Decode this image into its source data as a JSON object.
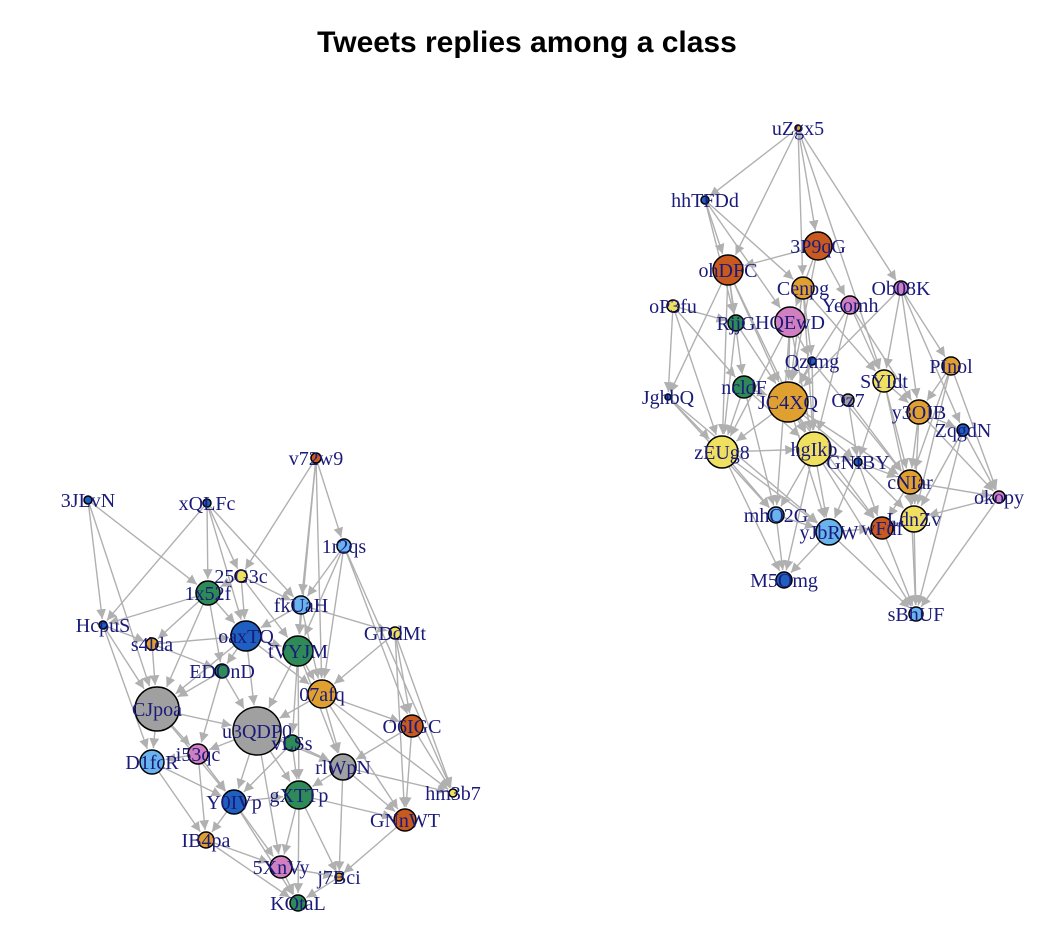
{
  "title": "Tweets replies among a class",
  "colors": {
    "edge": "#b0b0b0",
    "label": "#1a1a7a",
    "node_stroke": "#000000",
    "palette": {
      "orange": "#e0a030",
      "yellow": "#f0e060",
      "green": "#2e8b57",
      "lightblue": "#6ab4ee",
      "blue": "#1f5fbf",
      "gray": "#a0a0a0",
      "pink": "#d080c0",
      "rust": "#c85a20"
    }
  },
  "nodes": [
    {
      "id": "uZgx5",
      "color": "orange",
      "size": 3
    },
    {
      "id": "hhTFDd",
      "color": "blue",
      "size": 4
    },
    {
      "id": "3P9qG",
      "color": "rust",
      "size": 14
    },
    {
      "id": "ohDFC",
      "color": "rust",
      "size": 15
    },
    {
      "id": "Cenpg",
      "color": "orange",
      "size": 11
    },
    {
      "id": "Ob08K",
      "color": "pink",
      "size": 7
    },
    {
      "id": "Yeomh",
      "color": "pink",
      "size": 9
    },
    {
      "id": "oP3fu",
      "color": "yellow",
      "size": 6
    },
    {
      "id": "RjjG",
      "color": "green",
      "size": 8
    },
    {
      "id": "HQEwD",
      "color": "pink",
      "size": 15
    },
    {
      "id": "Qztmg",
      "color": "blue",
      "size": 4
    },
    {
      "id": "PInol",
      "color": "orange",
      "size": 9
    },
    {
      "id": "JghbQ",
      "color": "blue",
      "size": 3
    },
    {
      "id": "ncldF",
      "color": "green",
      "size": 11
    },
    {
      "id": "JC4XQ",
      "color": "orange",
      "size": 20
    },
    {
      "id": "SYIdt",
      "color": "yellow",
      "size": 11
    },
    {
      "id": "Oz7",
      "color": "gray",
      "size": 6
    },
    {
      "id": "y3OIB",
      "color": "orange",
      "size": 12
    },
    {
      "id": "ZqgdN",
      "color": "blue",
      "size": 6
    },
    {
      "id": "zEUg8",
      "color": "yellow",
      "size": 16
    },
    {
      "id": "hgIkb",
      "color": "yellow",
      "size": 17
    },
    {
      "id": "GNIBY",
      "color": "blue",
      "size": 4
    },
    {
      "id": "cNIar",
      "color": "orange",
      "size": 12
    },
    {
      "id": "okopy",
      "color": "pink",
      "size": 6
    },
    {
      "id": "mhO2G",
      "color": "lightblue",
      "size": 8
    },
    {
      "id": "yJbRW",
      "color": "lightblue",
      "size": 13
    },
    {
      "id": "wFdf",
      "color": "rust",
      "size": 11
    },
    {
      "id": "LdnZv",
      "color": "yellow",
      "size": 13
    },
    {
      "id": "M5Omg",
      "color": "blue",
      "size": 8
    },
    {
      "id": "sBhUF",
      "color": "lightblue",
      "size": 7
    },
    {
      "id": "v72w9",
      "color": "rust",
      "size": 5
    },
    {
      "id": "3JLvN",
      "color": "blue",
      "size": 4
    },
    {
      "id": "xQLFc",
      "color": "blue",
      "size": 4
    },
    {
      "id": "1r2qs",
      "color": "lightblue",
      "size": 7
    },
    {
      "id": "25G3c",
      "color": "yellow",
      "size": 6
    },
    {
      "id": "1x52f",
      "color": "green",
      "size": 12
    },
    {
      "id": "fkUaH",
      "color": "lightblue",
      "size": 9
    },
    {
      "id": "HcpuS",
      "color": "blue",
      "size": 4
    },
    {
      "id": "GDdMt",
      "color": "yellow",
      "size": 6
    },
    {
      "id": "s4lda",
      "color": "orange",
      "size": 6
    },
    {
      "id": "oaxTQ",
      "color": "blue",
      "size": 15
    },
    {
      "id": "tVYJM",
      "color": "green",
      "size": 15
    },
    {
      "id": "EDOnD",
      "color": "green",
      "size": 7
    },
    {
      "id": "07afq",
      "color": "orange",
      "size": 14
    },
    {
      "id": "CJpoa",
      "color": "gray",
      "size": 22
    },
    {
      "id": "u3QDP0",
      "color": "gray",
      "size": 24
    },
    {
      "id": "O6IGC",
      "color": "rust",
      "size": 11
    },
    {
      "id": "i53qc",
      "color": "pink",
      "size": 10
    },
    {
      "id": "vLSs",
      "color": "green",
      "size": 8
    },
    {
      "id": "D1fcR",
      "color": "lightblue",
      "size": 12
    },
    {
      "id": "rlWpN",
      "color": "gray",
      "size": 13
    },
    {
      "id": "hm3b7",
      "color": "yellow",
      "size": 4
    },
    {
      "id": "Y0IVp",
      "color": "blue",
      "size": 12
    },
    {
      "id": "gXTTp",
      "color": "green",
      "size": 14
    },
    {
      "id": "GNnWT",
      "color": "rust",
      "size": 11
    },
    {
      "id": "IB4pa",
      "color": "orange",
      "size": 8
    },
    {
      "id": "5XnVy",
      "color": "pink",
      "size": 11
    },
    {
      "id": "j7Bci",
      "color": "orange",
      "size": 4
    },
    {
      "id": "KOtaL",
      "color": "green",
      "size": 8
    }
  ],
  "labels": {
    "uZgx5": "uZgx5",
    "hhTFDd": "hhTFDd",
    "3P9qG": "3P9qG",
    "ohDFC": "ohDFC",
    "Cenpg": "Cenpg",
    "Ob08K": "Ob08K",
    "Yeomh": "Yeomh",
    "oP3fu": "oP3fu",
    "RjjG": "RjjG",
    "HQEwD": "HQEwD",
    "Qztmg": "Qztmg",
    "PInol": "PInol",
    "JghbQ": "JghbQ",
    "ncldF": "ncldF",
    "JC4XQ": "JC4XQ",
    "SYIdt": "SYIdt",
    "Oz7": "Oz7",
    "y3OIB": "y3OIB",
    "ZqgdN": "ZqgdN",
    "zEUg8": "zEUg8",
    "hgIkb": "hgIkb",
    "GNIBY": "GNIBY",
    "cNIar": "cNIar",
    "okopy": "okopy",
    "mhO2G": "mhO2G",
    "yJbRW": "yJbRW",
    "wFdf": "wFdf",
    "LdnZv": "LdnZv",
    "M5Omg": "M5Omg",
    "sBhUF": "sBhUF",
    "v72w9": "v72w9",
    "3JLvN": "3JLvN",
    "xQLFc": "xQLFc",
    "1r2qs": "1r2qs",
    "25G3c": "25G3c",
    "1x52f": "1x52f",
    "fkUaH": "fkUaH",
    "HcpuS": "HcpuS",
    "GDdMt": "GDdMt",
    "s4lda": "s4lda",
    "oaxTQ": "oaxTQ",
    "tVYJM": "tVYJM",
    "EDOnD": "EDOnD",
    "07afq": "07afq",
    "CJpoa": "CJpoa",
    "u3QDP0": "u3QDP0",
    "O6IGC": "O6IGC",
    "i53qc": "i53qc",
    "vLSs": "vLSs",
    "D1fcR": "D1fcR",
    "rlWpN": "rlWpN",
    "hm3b7": "hm3b7",
    "Y0IVp": "Y0IVp",
    "gXTTp": "gXTTp",
    "GNnWT": "GNnWT",
    "IB4pa": "IB4pa",
    "5XnVy": "5XnVy",
    "j7Bci": "j7Bci",
    "KOtaL": "KOtaL"
  },
  "edges": [
    [
      "uZgx5",
      "3P9qG"
    ],
    [
      "uZgx5",
      "hhTFDd"
    ],
    [
      "uZgx5",
      "Ob08K"
    ],
    [
      "uZgx5",
      "ohDFC"
    ],
    [
      "uZgx5",
      "SYIdt"
    ],
    [
      "uZgx5",
      "Cenpg"
    ],
    [
      "hhTFDd",
      "RjjG"
    ],
    [
      "hhTFDd",
      "HQEwD"
    ],
    [
      "hhTFDd",
      "Cenpg"
    ],
    [
      "hhTFDd",
      "ohDFC"
    ],
    [
      "3P9qG",
      "HQEwD"
    ],
    [
      "3P9qG",
      "JC4XQ"
    ],
    [
      "3P9qG",
      "ohDFC"
    ],
    [
      "3P9qG",
      "Yeomh"
    ],
    [
      "ohDFC",
      "JghbQ"
    ],
    [
      "ohDFC",
      "ncldF"
    ],
    [
      "ohDFC",
      "RjjG"
    ],
    [
      "ohDFC",
      "zEUg8"
    ],
    [
      "ohDFC",
      "JC4XQ"
    ],
    [
      "ohDFC",
      "hgIkb"
    ],
    [
      "Cenpg",
      "JC4XQ"
    ],
    [
      "Cenpg",
      "Qztmg"
    ],
    [
      "Cenpg",
      "SYIdt"
    ],
    [
      "Cenpg",
      "hgIkb"
    ],
    [
      "Ob08K",
      "PInol"
    ],
    [
      "Ob08K",
      "y3OIB"
    ],
    [
      "Ob08K",
      "SYIdt"
    ],
    [
      "Ob08K",
      "ZqgdN"
    ],
    [
      "Ob08K",
      "JC4XQ"
    ],
    [
      "Yeomh",
      "SYIdt"
    ],
    [
      "Yeomh",
      "JC4XQ"
    ],
    [
      "Yeomh",
      "hgIkb"
    ],
    [
      "Yeomh",
      "y3OIB"
    ],
    [
      "oP3fu",
      "JghbQ"
    ],
    [
      "oP3fu",
      "zEUg8"
    ],
    [
      "oP3fu",
      "RjjG"
    ],
    [
      "oP3fu",
      "ncldF"
    ],
    [
      "RjjG",
      "zEUg8"
    ],
    [
      "RjjG",
      "JC4XQ"
    ],
    [
      "HQEwD",
      "JC4XQ"
    ],
    [
      "HQEwD",
      "zEUg8"
    ],
    [
      "HQEwD",
      "hgIkb"
    ],
    [
      "HQEwD",
      "Qztmg"
    ],
    [
      "HQEwD",
      "mhO2G"
    ],
    [
      "Qztmg",
      "JC4XQ"
    ],
    [
      "Qztmg",
      "hgIkb"
    ],
    [
      "Qztmg",
      "cNIar"
    ],
    [
      "PInol",
      "y3OIB"
    ],
    [
      "PInol",
      "okopy"
    ],
    [
      "PInol",
      "cNIar"
    ],
    [
      "PInol",
      "LdnZv"
    ],
    [
      "JghbQ",
      "zEUg8"
    ],
    [
      "JghbQ",
      "mhO2G"
    ],
    [
      "JghbQ",
      "yJbRW"
    ],
    [
      "ncldF",
      "zEUg8"
    ],
    [
      "ncldF",
      "hgIkb"
    ],
    [
      "ncldF",
      "mhO2G"
    ],
    [
      "ncldF",
      "JC4XQ"
    ],
    [
      "JC4XQ",
      "hgIkb"
    ],
    [
      "JC4XQ",
      "zEUg8"
    ],
    [
      "JC4XQ",
      "GNIBY"
    ],
    [
      "JC4XQ",
      "yJbRW"
    ],
    [
      "JC4XQ",
      "wFdf"
    ],
    [
      "JC4XQ",
      "cNIar"
    ],
    [
      "SYIdt",
      "y3OIB"
    ],
    [
      "SYIdt",
      "cNIar"
    ],
    [
      "SYIdt",
      "GNIBY"
    ],
    [
      "SYIdt",
      "LdnZv"
    ],
    [
      "Oz7",
      "GNIBY"
    ],
    [
      "Oz7",
      "cNIar"
    ],
    [
      "y3OIB",
      "ZqgdN"
    ],
    [
      "y3OIB",
      "cNIar"
    ],
    [
      "y3OIB",
      "LdnZv"
    ],
    [
      "y3OIB",
      "okopy"
    ],
    [
      "ZqgdN",
      "okopy"
    ],
    [
      "ZqgdN",
      "LdnZv"
    ],
    [
      "ZqgdN",
      "sBhUF"
    ],
    [
      "zEUg8",
      "mhO2G"
    ],
    [
      "zEUg8",
      "yJbRW"
    ],
    [
      "zEUg8",
      "M5Omg"
    ],
    [
      "zEUg8",
      "hgIkb"
    ],
    [
      "hgIkb",
      "GNIBY"
    ],
    [
      "hgIkb",
      "yJbRW"
    ],
    [
      "hgIkb",
      "mhO2G"
    ],
    [
      "hgIkb",
      "wFdf"
    ],
    [
      "hgIkb",
      "M5Omg"
    ],
    [
      "hgIkb",
      "sBhUF"
    ],
    [
      "GNIBY",
      "cNIar"
    ],
    [
      "GNIBY",
      "yJbRW"
    ],
    [
      "GNIBY",
      "wFdf"
    ],
    [
      "GNIBY",
      "LdnZv"
    ],
    [
      "cNIar",
      "LdnZv"
    ],
    [
      "cNIar",
      "wFdf"
    ],
    [
      "cNIar",
      "sBhUF"
    ],
    [
      "cNIar",
      "okopy"
    ],
    [
      "okopy",
      "sBhUF"
    ],
    [
      "okopy",
      "LdnZv"
    ],
    [
      "mhO2G",
      "yJbRW"
    ],
    [
      "mhO2G",
      "M5Omg"
    ],
    [
      "yJbRW",
      "wFdf"
    ],
    [
      "yJbRW",
      "M5Omg"
    ],
    [
      "yJbRW",
      "sBhUF"
    ],
    [
      "wFdf",
      "LdnZv"
    ],
    [
      "wFdf",
      "sBhUF"
    ],
    [
      "LdnZv",
      "sBhUF"
    ],
    [
      "v72w9",
      "25G3c"
    ],
    [
      "v72w9",
      "1r2qs"
    ],
    [
      "v72w9",
      "fkUaH"
    ],
    [
      "v72w9",
      "tVYJM"
    ],
    [
      "v72w9",
      "07afq"
    ],
    [
      "3JLvN",
      "HcpuS"
    ],
    [
      "3JLvN",
      "1x52f"
    ],
    [
      "3JLvN",
      "CJpoa"
    ],
    [
      "xQLFc",
      "1x52f"
    ],
    [
      "xQLFc",
      "25G3c"
    ],
    [
      "xQLFc",
      "fkUaH"
    ],
    [
      "xQLFc",
      "oaxTQ"
    ],
    [
      "xQLFc",
      "HcpuS"
    ],
    [
      "1r2qs",
      "fkUaH"
    ],
    [
      "1r2qs",
      "tVYJM"
    ],
    [
      "1r2qs",
      "07afq"
    ],
    [
      "1r2qs",
      "O6IGC"
    ],
    [
      "1r2qs",
      "hm3b7"
    ],
    [
      "25G3c",
      "1x52f"
    ],
    [
      "25G3c",
      "fkUaH"
    ],
    [
      "25G3c",
      "oaxTQ"
    ],
    [
      "25G3c",
      "tVYJM"
    ],
    [
      "1x52f",
      "oaxTQ"
    ],
    [
      "1x52f",
      "s4lda"
    ],
    [
      "1x52f",
      "HcpuS"
    ],
    [
      "1x52f",
      "EDOnD"
    ],
    [
      "1x52f",
      "CJpoa"
    ],
    [
      "fkUaH",
      "tVYJM"
    ],
    [
      "fkUaH",
      "oaxTQ"
    ],
    [
      "fkUaH",
      "07afq"
    ],
    [
      "fkUaH",
      "GDdMt"
    ],
    [
      "HcpuS",
      "s4lda"
    ],
    [
      "HcpuS",
      "CJpoa"
    ],
    [
      "HcpuS",
      "D1fcR"
    ],
    [
      "GDdMt",
      "07afq"
    ],
    [
      "GDdMt",
      "O6IGC"
    ],
    [
      "GDdMt",
      "GNnWT"
    ],
    [
      "GDdMt",
      "hm3b7"
    ],
    [
      "s4lda",
      "CJpoa"
    ],
    [
      "s4lda",
      "EDOnD"
    ],
    [
      "s4lda",
      "oaxTQ"
    ],
    [
      "oaxTQ",
      "tVYJM"
    ],
    [
      "oaxTQ",
      "EDOnD"
    ],
    [
      "oaxTQ",
      "u3QDP0"
    ],
    [
      "oaxTQ",
      "CJpoa"
    ],
    [
      "oaxTQ",
      "07afq"
    ],
    [
      "tVYJM",
      "07afq"
    ],
    [
      "tVYJM",
      "u3QDP0"
    ],
    [
      "tVYJM",
      "vLSs"
    ],
    [
      "tVYJM",
      "rlWpN"
    ],
    [
      "tVYJM",
      "gXTTp"
    ],
    [
      "EDOnD",
      "CJpoa"
    ],
    [
      "EDOnD",
      "u3QDP0"
    ],
    [
      "EDOnD",
      "i53qc"
    ],
    [
      "07afq",
      "rlWpN"
    ],
    [
      "07afq",
      "u3QDP0"
    ],
    [
      "07afq",
      "O6IGC"
    ],
    [
      "07afq",
      "GNnWT"
    ],
    [
      "07afq",
      "hm3b7"
    ],
    [
      "CJpoa",
      "u3QDP0"
    ],
    [
      "CJpoa",
      "D1fcR"
    ],
    [
      "CJpoa",
      "i53qc"
    ],
    [
      "CJpoa",
      "Y0IVp"
    ],
    [
      "u3QDP0",
      "vLSs"
    ],
    [
      "u3QDP0",
      "i53qc"
    ],
    [
      "u3QDP0",
      "Y0IVp"
    ],
    [
      "u3QDP0",
      "gXTTp"
    ],
    [
      "u3QDP0",
      "rlWpN"
    ],
    [
      "u3QDP0",
      "5XnVy"
    ],
    [
      "O6IGC",
      "GNnWT"
    ],
    [
      "O6IGC",
      "rlWpN"
    ],
    [
      "O6IGC",
      "hm3b7"
    ],
    [
      "i53qc",
      "D1fcR"
    ],
    [
      "i53qc",
      "Y0IVp"
    ],
    [
      "i53qc",
      "IB4pa"
    ],
    [
      "vLSs",
      "gXTTp"
    ],
    [
      "vLSs",
      "rlWpN"
    ],
    [
      "vLSs",
      "Y0IVp"
    ],
    [
      "D1fcR",
      "Y0IVp"
    ],
    [
      "D1fcR",
      "IB4pa"
    ],
    [
      "rlWpN",
      "gXTTp"
    ],
    [
      "rlWpN",
      "GNnWT"
    ],
    [
      "rlWpN",
      "hm3b7"
    ],
    [
      "rlWpN",
      "j7Bci"
    ],
    [
      "Y0IVp",
      "gXTTp"
    ],
    [
      "Y0IVp",
      "IB4pa"
    ],
    [
      "Y0IVp",
      "5XnVy"
    ],
    [
      "Y0IVp",
      "KOtaL"
    ],
    [
      "gXTTp",
      "5XnVy"
    ],
    [
      "gXTTp",
      "j7Bci"
    ],
    [
      "gXTTp",
      "GNnWT"
    ],
    [
      "gXTTp",
      "KOtaL"
    ],
    [
      "GNnWT",
      "j7Bci"
    ],
    [
      "IB4pa",
      "5XnVy"
    ],
    [
      "IB4pa",
      "KOtaL"
    ],
    [
      "5XnVy",
      "KOtaL"
    ],
    [
      "5XnVy",
      "j7Bci"
    ],
    [
      "j7Bci",
      "KOtaL"
    ]
  ]
}
